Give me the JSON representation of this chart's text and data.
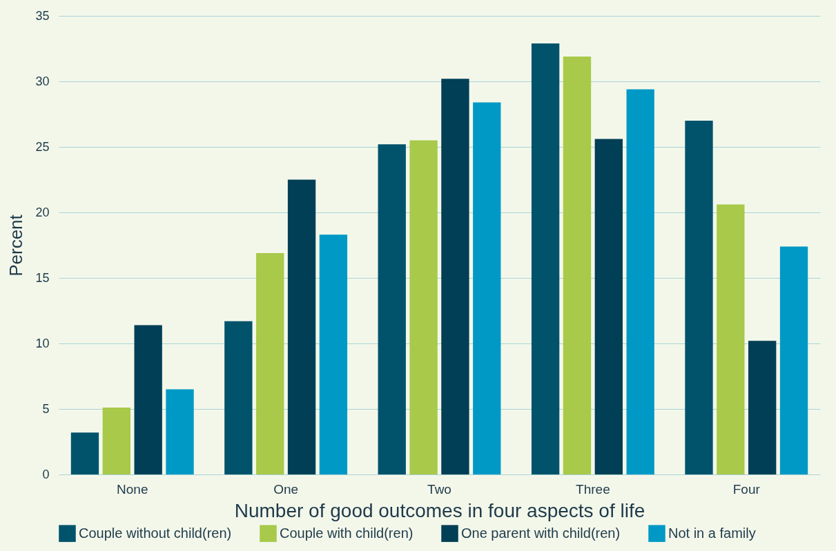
{
  "chart_data": {
    "type": "bar",
    "xlabel": "Number of good outcomes in four aspects of life",
    "ylabel": "Percent",
    "categories": [
      "None",
      "One",
      "Two",
      "Three",
      "Four"
    ],
    "series": [
      {
        "name": "Couple without child(ren)",
        "color": "#00536b",
        "values": [
          3.2,
          11.7,
          25.2,
          32.9,
          27.0
        ]
      },
      {
        "name": "Couple with child(ren)",
        "color": "#a8c94a",
        "values": [
          5.1,
          16.9,
          25.5,
          31.9,
          20.6
        ]
      },
      {
        "name": "One parent with child(ren)",
        "color": "#003f55",
        "values": [
          11.4,
          22.5,
          30.2,
          25.6,
          10.2
        ]
      },
      {
        "name": "Not in a family",
        "color": "#0099c6",
        "values": [
          6.5,
          18.3,
          28.4,
          29.4,
          17.4
        ]
      }
    ],
    "ylim": [
      0,
      35
    ],
    "yticks": [
      0,
      5,
      10,
      15,
      20,
      25,
      30,
      35
    ],
    "grid": "y",
    "legend": "bottom"
  }
}
